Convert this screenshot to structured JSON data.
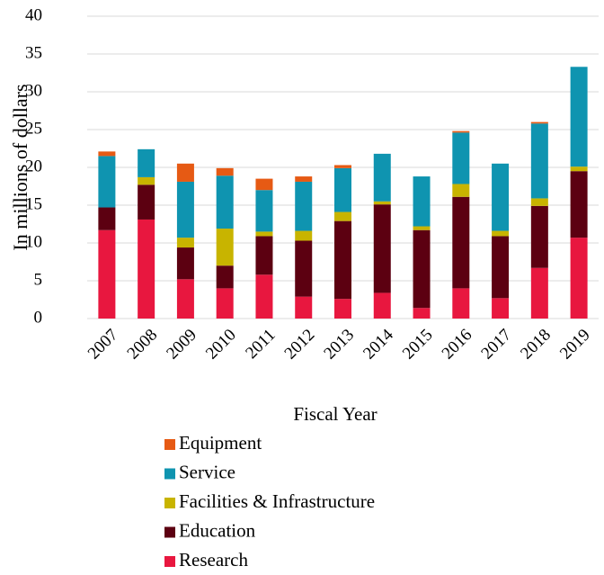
{
  "chart_data": {
    "type": "stacked_bar",
    "x_label": "Fiscal Year",
    "y_label": "In millions of dollars",
    "categories": [
      "2007",
      "2008",
      "2009",
      "2010",
      "2011",
      "2012",
      "2013",
      "2014",
      "2015",
      "2016",
      "2017",
      "2018",
      "2019"
    ],
    "series": [
      {
        "name": "Research",
        "color": "#e8173f",
        "values": [
          11.7,
          13.1,
          5.2,
          4.0,
          5.8,
          2.9,
          2.6,
          3.4,
          1.4,
          4.0,
          2.7,
          6.7,
          10.7
        ]
      },
      {
        "name": "Education",
        "color": "#5c0011",
        "values": [
          3.0,
          4.6,
          4.2,
          3.0,
          5.1,
          7.4,
          10.3,
          11.7,
          10.3,
          12.1,
          8.2,
          8.2,
          8.8
        ]
      },
      {
        "name": "Facilities & Infrastructure",
        "color": "#c8b400",
        "values": [
          0,
          1.0,
          1.3,
          4.9,
          0.6,
          1.3,
          1.2,
          0.4,
          0.5,
          1.7,
          0.7,
          1.0,
          0.6
        ]
      },
      {
        "name": "Service",
        "color": "#0f94b0",
        "values": [
          6.8,
          3.7,
          7.4,
          7.0,
          5.5,
          6.5,
          5.8,
          6.3,
          6.6,
          6.8,
          8.9,
          9.9,
          13.2
        ]
      },
      {
        "name": "Equipment",
        "color": "#e65a14",
        "values": [
          0.6,
          0,
          2.4,
          1.0,
          1.5,
          0.7,
          0.4,
          0,
          0,
          0.2,
          0,
          0.2,
          0
        ]
      }
    ],
    "ylim": [
      0,
      40
    ],
    "yticks": [
      0,
      5,
      10,
      15,
      20,
      25,
      30,
      35,
      40
    ],
    "grid": true
  }
}
